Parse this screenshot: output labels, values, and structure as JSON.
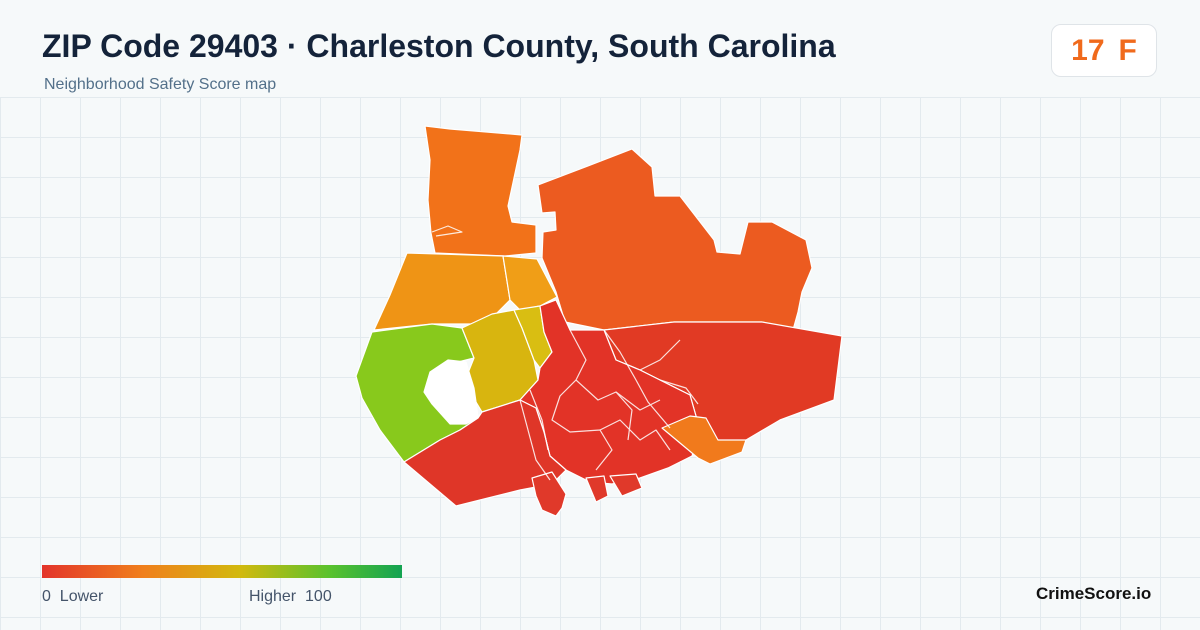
{
  "header": {
    "title": "ZIP Code 29403 · Charleston County, South Carolina",
    "subtitle": "Neighborhood Safety Score map"
  },
  "score": {
    "value": "17",
    "grade": "F",
    "color": "#f06a1c"
  },
  "legend": {
    "low_label": "0  Lower",
    "high_label": "Higher  100",
    "color_low": "#e3342b",
    "color_mid": "#d2b90e",
    "color_high": "#13a352",
    "min": 0,
    "max": 100
  },
  "map_regions": [
    {
      "name": "north-peninsula",
      "color": "#f27219"
    },
    {
      "name": "upper-east",
      "color": "#ec5b20"
    },
    {
      "name": "west-orange",
      "color": "#ef9415"
    },
    {
      "name": "west-orange-2",
      "color": "#f09e17"
    },
    {
      "name": "green-west",
      "color": "#88c91c"
    },
    {
      "name": "yellow-center",
      "color": "#d8b50f"
    },
    {
      "name": "yellow-center-2",
      "color": "#d9be12"
    },
    {
      "name": "east-large",
      "color": "#e13a24"
    },
    {
      "name": "south-west",
      "color": "#df3628"
    },
    {
      "name": "center-red",
      "color": "#e23327"
    },
    {
      "name": "south-east-orange",
      "color": "#f17a1c"
    },
    {
      "name": "small-blocks",
      "color": "#e0392a"
    }
  ],
  "brand": "CrimeScore.io"
}
